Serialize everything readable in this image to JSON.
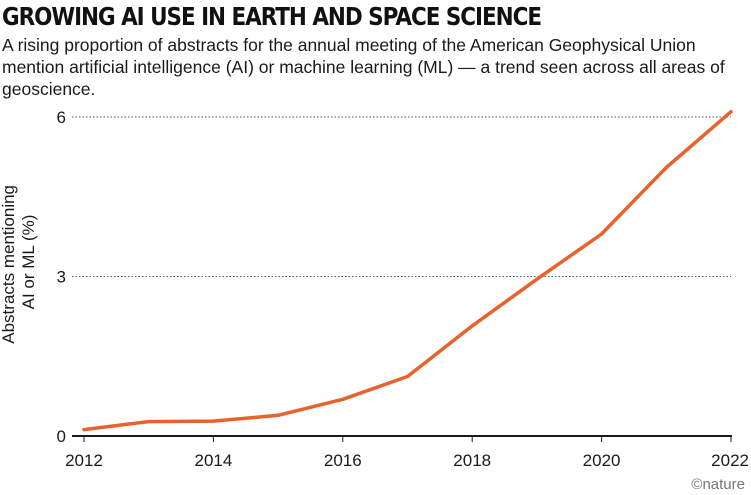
{
  "header": {
    "title": "GROWING AI USE IN EARTH AND SPACE SCIENCE",
    "subtitle": "A rising proportion of abstracts for the annual meeting of the American Geophysical Union mention artificial intelligence (AI) or machine learning (ML) — a trend seen across all areas of geoscience."
  },
  "credit": "©nature",
  "colors": {
    "line": "#e8622c",
    "grid": "#555555",
    "axis": "#1a1a1a"
  },
  "chart_data": {
    "type": "line",
    "title": "GROWING AI USE IN EARTH AND SPACE SCIENCE",
    "xlabel": "",
    "ylabel_lines": [
      "Abstracts mentioning",
      "AI or ML (%)"
    ],
    "xlim": [
      2012,
      2022
    ],
    "ylim": [
      0,
      6
    ],
    "x_ticks": [
      2012,
      2014,
      2016,
      2018,
      2020,
      2022
    ],
    "y_ticks": [
      0,
      3,
      6
    ],
    "gridlines": "horizontal dotted at y ticks",
    "series": [
      {
        "name": "Abstracts mentioning AI or ML (%)",
        "x": [
          2012,
          2013,
          2014,
          2015,
          2016,
          2017,
          2018,
          2019,
          2020,
          2021,
          2022
        ],
        "y": [
          0.12,
          0.27,
          0.28,
          0.39,
          0.69,
          1.12,
          2.07,
          2.95,
          3.8,
          5.05,
          6.1
        ]
      }
    ]
  }
}
